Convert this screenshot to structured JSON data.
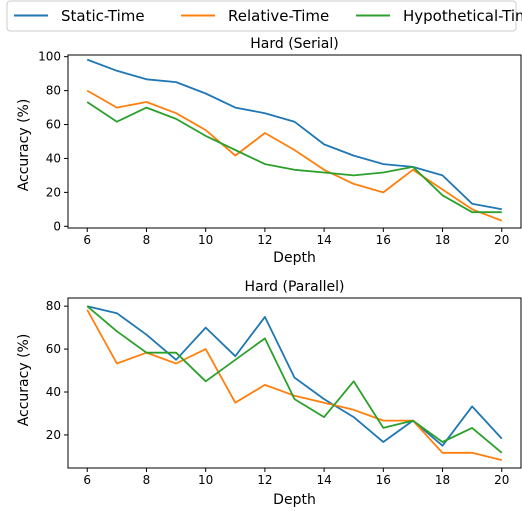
{
  "legend": [
    {
      "name": "Static-Time",
      "color": "#1f77b4"
    },
    {
      "name": "Relative-Time",
      "color": "#ff7f0e"
    },
    {
      "name": "Hypothetical-Time",
      "color": "#2ca02c"
    }
  ],
  "chart_data": [
    {
      "type": "line",
      "title": "Hard (Serial)",
      "xlabel": "Depth",
      "ylabel": "Accuracy (%)",
      "xlim": [
        5.35,
        20.65
      ],
      "ylim": [
        -1,
        101
      ],
      "xticks": [
        6,
        8,
        10,
        12,
        14,
        16,
        18,
        20
      ],
      "yticks": [
        0,
        20,
        40,
        60,
        80,
        100
      ],
      "x": [
        6,
        7,
        8,
        9,
        10,
        11,
        12,
        13,
        14,
        15,
        16,
        17,
        18,
        19,
        20
      ],
      "series": [
        {
          "name": "Static-Time",
          "color": "#1f77b4",
          "values": [
            98.3,
            91.7,
            86.7,
            85.0,
            78.3,
            70.0,
            66.7,
            61.7,
            48.3,
            41.7,
            36.7,
            35.0,
            30.0,
            13.3,
            10.0
          ]
        },
        {
          "name": "Relative-Time",
          "color": "#ff7f0e",
          "values": [
            80.0,
            70.0,
            73.3,
            66.7,
            56.7,
            41.7,
            55.0,
            45.0,
            33.3,
            25.0,
            20.0,
            33.3,
            21.7,
            10.0,
            3.3
          ]
        },
        {
          "name": "Hypothetical-Time",
          "color": "#2ca02c",
          "values": [
            73.3,
            61.7,
            70.0,
            63.3,
            53.3,
            45.0,
            36.7,
            33.3,
            31.7,
            30.0,
            31.7,
            35.0,
            18.3,
            8.3,
            8.3
          ]
        }
      ]
    },
    {
      "type": "line",
      "title": "Hard (Parallel)",
      "xlabel": "Depth",
      "ylabel": "Accuracy (%)",
      "xlim": [
        5.35,
        20.65
      ],
      "ylim": [
        4.6,
        83.8
      ],
      "xticks": [
        6,
        8,
        10,
        12,
        14,
        16,
        18,
        20
      ],
      "yticks": [
        20,
        40,
        60,
        80
      ],
      "x": [
        6,
        7,
        8,
        9,
        10,
        11,
        12,
        13,
        14,
        15,
        16,
        17,
        18,
        19,
        20
      ],
      "series": [
        {
          "name": "Static-Time",
          "color": "#1f77b4",
          "values": [
            80.0,
            76.7,
            66.7,
            55.0,
            70.0,
            56.7,
            75.0,
            46.7,
            36.7,
            28.3,
            16.7,
            26.7,
            15.0,
            33.3,
            18.3
          ]
        },
        {
          "name": "Relative-Time",
          "color": "#ff7f0e",
          "values": [
            78.3,
            53.3,
            58.3,
            53.3,
            60.0,
            35.0,
            43.3,
            38.3,
            35.0,
            31.7,
            26.7,
            26.7,
            11.7,
            11.7,
            8.3
          ]
        },
        {
          "name": "Hypothetical-Time",
          "color": "#2ca02c",
          "values": [
            80.0,
            68.3,
            58.3,
            58.3,
            45.0,
            55.0,
            65.0,
            36.7,
            28.3,
            45.0,
            23.3,
            26.7,
            16.7,
            23.3,
            11.7
          ]
        }
      ]
    }
  ]
}
